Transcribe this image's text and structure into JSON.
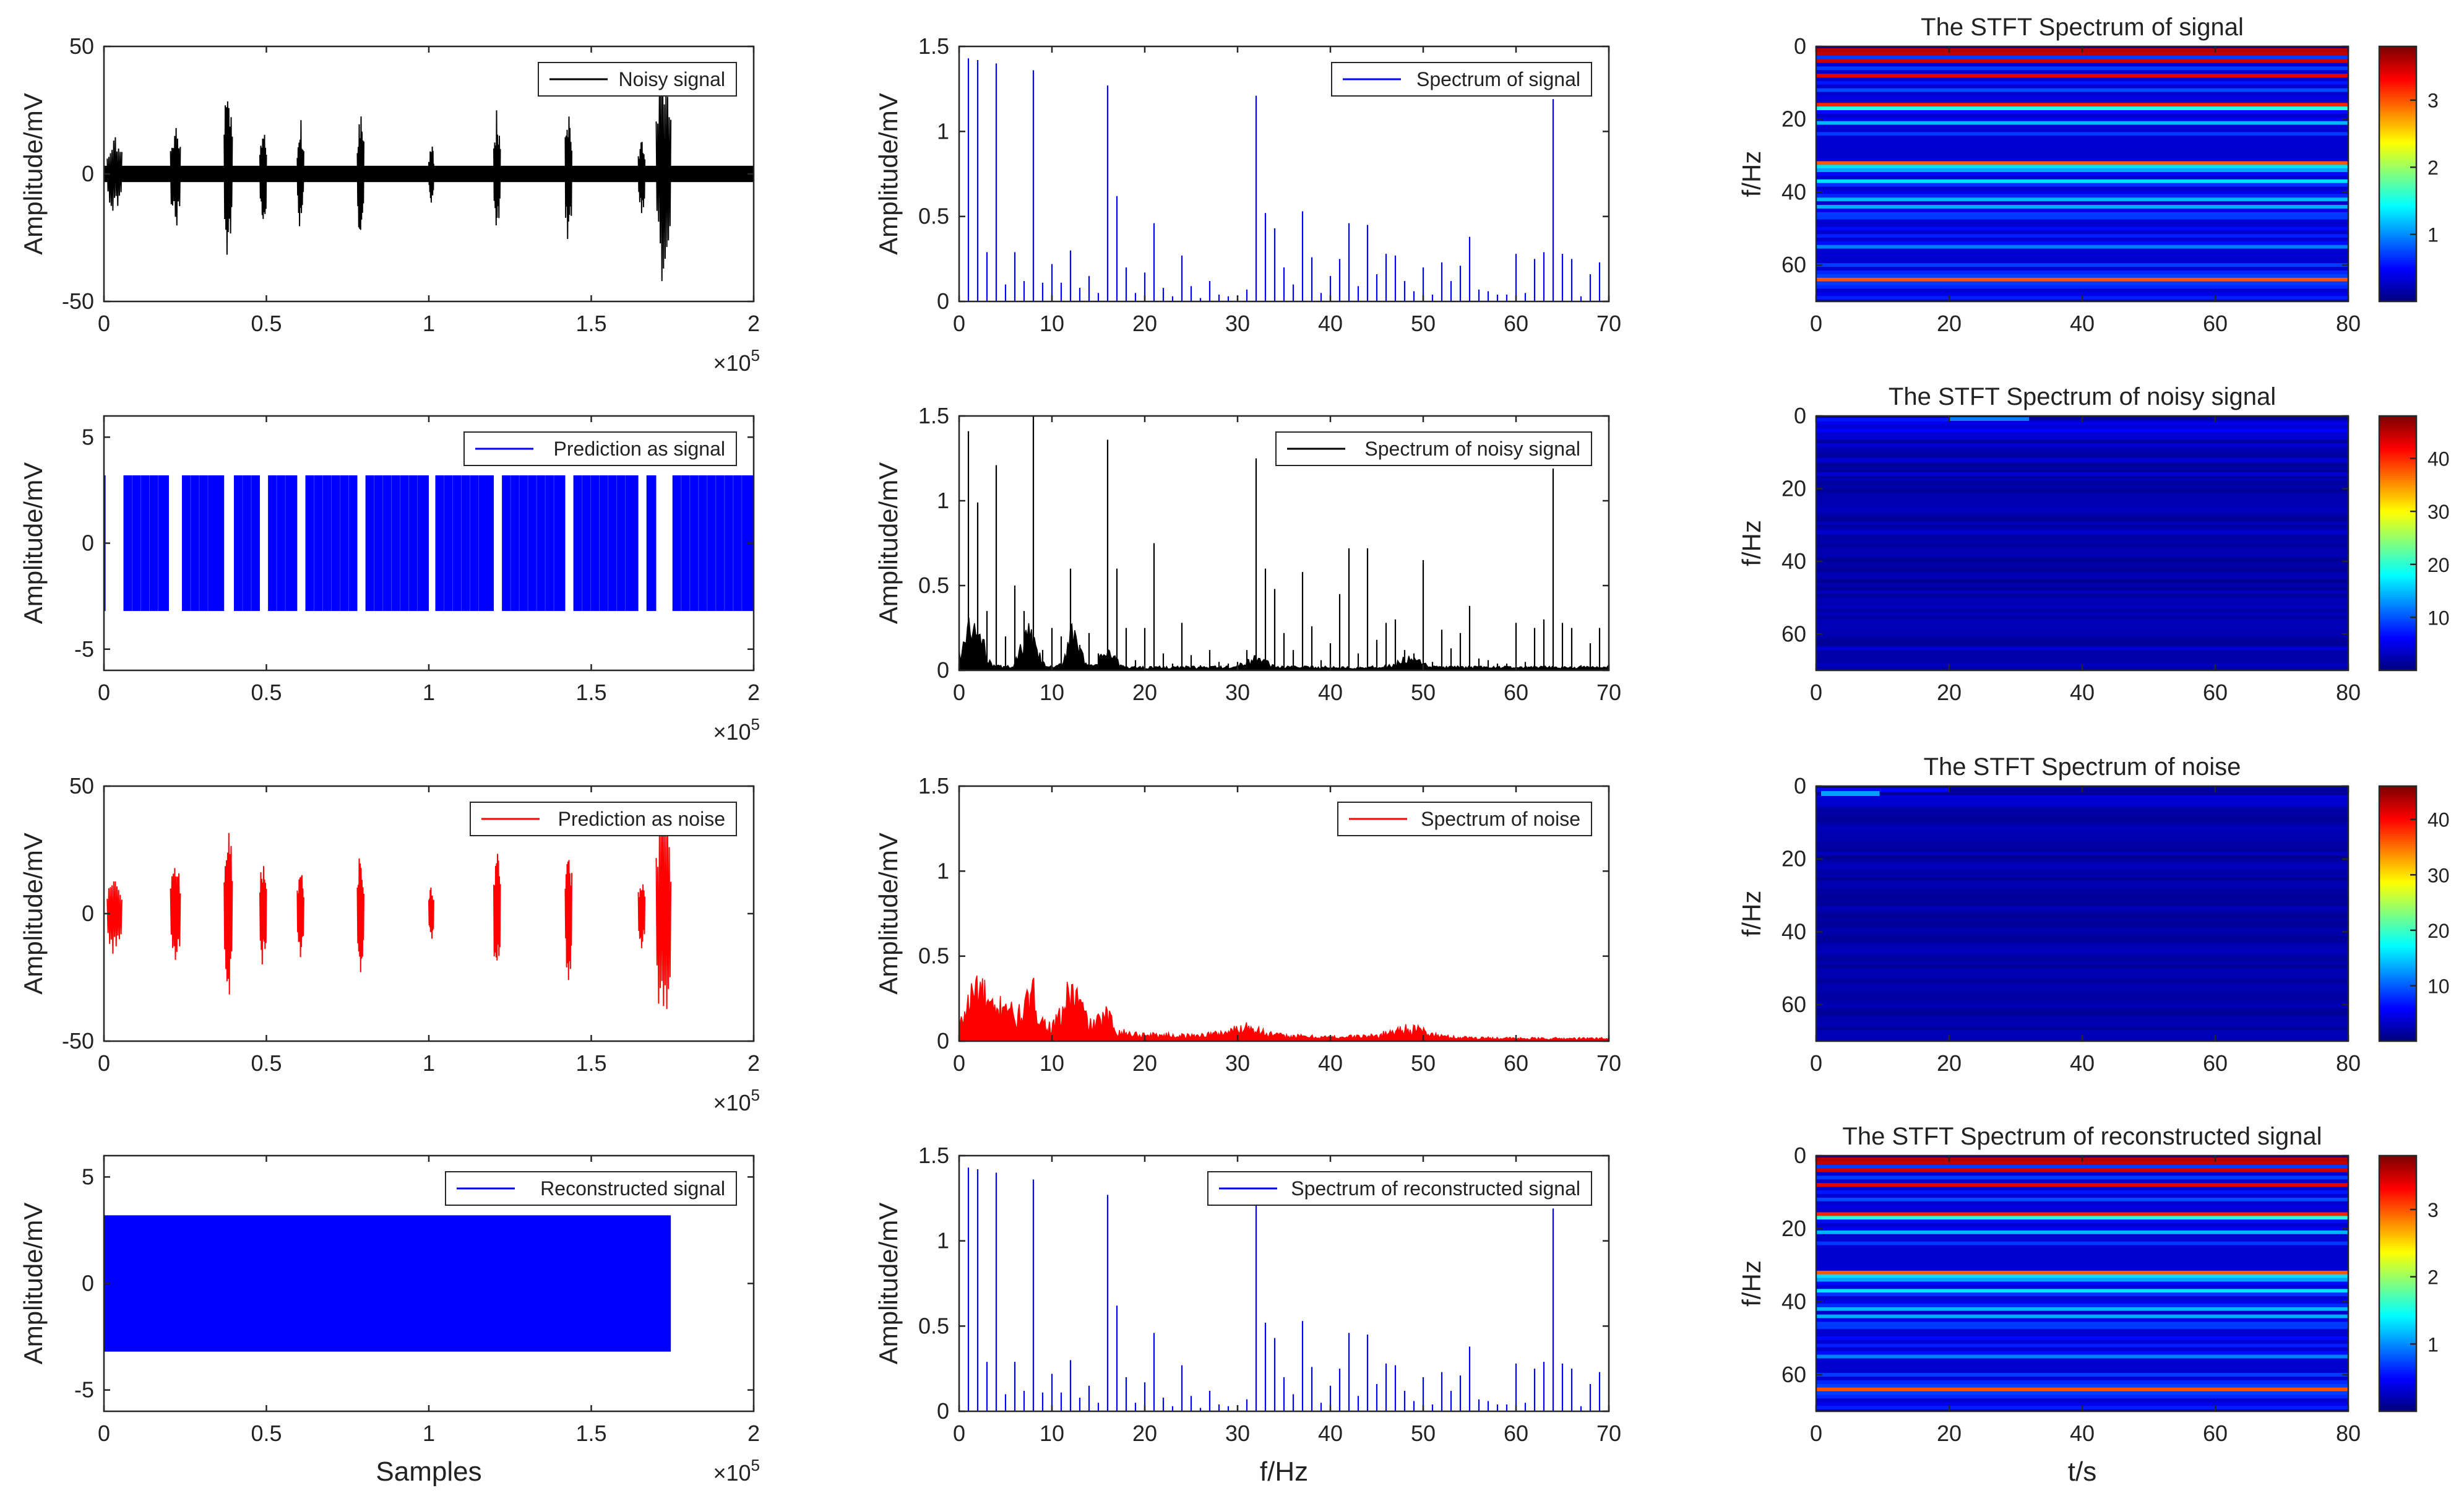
{
  "chart_data": [
    {
      "id": "noisy-signal",
      "type": "line",
      "ylabel": "Amplitude/mV",
      "xlabel": "",
      "x_exponent": "×10",
      "x_exponent_power": "5",
      "xlim": [
        0,
        2
      ],
      "ylim": [
        -50,
        50
      ],
      "xticks": [
        "0",
        "0.5",
        "1",
        "1.5",
        "2"
      ],
      "yticks": [
        "-50",
        "0",
        "50"
      ],
      "legend": "Noisy signal",
      "color": "#000000",
      "baseline_amplitude": 3.2,
      "bursts": [
        {
          "x0": 0.01,
          "x1": 0.055,
          "amp": 18
        },
        {
          "x0": 0.205,
          "x1": 0.235,
          "amp": 23
        },
        {
          "x0": 0.37,
          "x1": 0.395,
          "amp": 38
        },
        {
          "x0": 0.48,
          "x1": 0.5,
          "amp": 23
        },
        {
          "x0": 0.595,
          "x1": 0.615,
          "amp": 23
        },
        {
          "x0": 0.78,
          "x1": 0.8,
          "amp": 27
        },
        {
          "x0": 1.0,
          "x1": 1.015,
          "amp": 13
        },
        {
          "x0": 1.2,
          "x1": 1.22,
          "amp": 27
        },
        {
          "x0": 1.42,
          "x1": 1.44,
          "amp": 30
        },
        {
          "x0": 1.645,
          "x1": 1.665,
          "amp": 17
        },
        {
          "x0": 1.7,
          "x1": 1.745,
          "amp": 50
        }
      ]
    },
    {
      "id": "spectrum-signal",
      "type": "bar",
      "ylabel": "Amplitude/mV",
      "xlabel": "",
      "xlim": [
        0,
        70
      ],
      "ylim": [
        0,
        1.5
      ],
      "xticks": [
        "0",
        "10",
        "20",
        "30",
        "40",
        "50",
        "60",
        "70"
      ],
      "yticks": [
        "0",
        "0.5",
        "1",
        "1.5"
      ],
      "legend": "Spectrum of signal",
      "color": "#0000ff",
      "x": [
        1,
        2,
        3,
        4,
        5,
        6,
        7,
        8,
        9,
        10,
        11,
        12,
        13,
        14,
        15,
        16,
        17,
        18,
        19,
        20,
        21,
        22,
        23,
        24,
        25,
        26,
        27,
        28,
        29,
        30,
        31,
        32,
        33,
        34,
        35,
        36,
        37,
        38,
        39,
        40,
        41,
        42,
        43,
        44,
        45,
        46,
        47,
        48,
        49,
        50,
        51,
        52,
        53,
        54,
        55,
        56,
        57,
        58,
        59,
        60,
        61,
        62,
        63,
        64,
        65,
        66,
        67,
        68,
        69
      ],
      "values": [
        1.43,
        1.42,
        0.29,
        1.4,
        0.1,
        0.29,
        0.12,
        1.36,
        0.11,
        0.22,
        0.11,
        0.3,
        0.08,
        0.15,
        0.05,
        1.27,
        0.62,
        0.2,
        0.05,
        0.17,
        0.46,
        0.08,
        0.03,
        0.27,
        0.09,
        0.02,
        0.12,
        0.04,
        0.03,
        0.03,
        0.07,
        1.21,
        0.52,
        0.43,
        0.2,
        0.1,
        0.53,
        0.26,
        0.05,
        0.15,
        0.25,
        0.46,
        0.09,
        0.45,
        0.16,
        0.28,
        0.27,
        0.12,
        0.06,
        0.2,
        0.04,
        0.23,
        0.12,
        0.21,
        0.38,
        0.07,
        0.06,
        0.04,
        0.04,
        0.28,
        0.05,
        0.25,
        0.29,
        1.19,
        0.28,
        0.25,
        0.03,
        0.16,
        0.23
      ]
    },
    {
      "id": "stft-signal",
      "type": "heatmap",
      "title": "The STFT Spectrum of signal",
      "ylabel": "f/Hz",
      "xlabel": "",
      "xlim": [
        0,
        80
      ],
      "ylim": [
        0,
        70
      ],
      "xticks": [
        "0",
        "20",
        "40",
        "60",
        "80"
      ],
      "yticks": [
        "0",
        "20",
        "40",
        "60"
      ],
      "colorbar_range": [
        0,
        3.8
      ],
      "colorbar_ticks": [
        "1",
        "2",
        "3"
      ],
      "colorbar_values": [
        1,
        2,
        3
      ],
      "rows_hz": [
        1,
        2,
        3,
        4,
        5,
        6,
        7,
        8,
        9,
        10,
        11,
        12,
        13,
        14,
        15,
        16,
        17,
        18,
        19,
        20,
        21,
        22,
        23,
        24,
        25,
        26,
        27,
        28,
        29,
        30,
        31,
        32,
        33,
        34,
        35,
        36,
        37,
        38,
        39,
        40,
        41,
        42,
        43,
        44,
        45,
        46,
        47,
        48,
        49,
        50,
        51,
        52,
        53,
        54,
        55,
        56,
        57,
        58,
        59,
        60,
        61,
        62,
        63,
        64,
        65,
        66,
        67,
        68,
        69
      ],
      "row_values": [
        3.6,
        3.55,
        0.7,
        3.5,
        0.25,
        0.7,
        0.3,
        3.4,
        0.27,
        0.55,
        0.27,
        0.75,
        0.2,
        0.37,
        0.12,
        3.2,
        1.55,
        0.5,
        0.12,
        0.42,
        1.15,
        0.2,
        0.08,
        0.68,
        0.22,
        0.05,
        0.3,
        0.1,
        0.08,
        0.08,
        0.18,
        3.0,
        1.3,
        1.08,
        0.5,
        0.25,
        1.32,
        0.65,
        0.12,
        0.38,
        0.62,
        1.15,
        0.22,
        1.12,
        0.4,
        0.7,
        0.68,
        0.3,
        0.15,
        0.5,
        0.1,
        0.58,
        0.3,
        0.52,
        0.95,
        0.18,
        0.15,
        0.1,
        0.1,
        0.7,
        0.12,
        0.62,
        0.72,
        3.0,
        0.7,
        0.62,
        0.08,
        0.4,
        0.58
      ]
    },
    {
      "id": "prediction-signal",
      "type": "line",
      "ylabel": "Amplitude/mV",
      "xlabel": "",
      "x_exponent": "×10",
      "x_exponent_power": "5",
      "xlim": [
        0,
        2
      ],
      "ylim": [
        -6,
        6
      ],
      "xticks": [
        "0",
        "0.5",
        "1",
        "1.5",
        "2"
      ],
      "yticks": [
        "-5",
        "0",
        "5"
      ],
      "legend": "Prediction as signal",
      "color": "#0000ff",
      "amplitude": 3.2,
      "segments": [
        [
          0.0,
          0.005
        ],
        [
          0.06,
          0.2
        ],
        [
          0.24,
          0.37
        ],
        [
          0.4,
          0.48
        ],
        [
          0.505,
          0.595
        ],
        [
          0.62,
          0.78
        ],
        [
          0.805,
          1.0
        ],
        [
          1.02,
          1.2
        ],
        [
          1.225,
          1.42
        ],
        [
          1.445,
          1.645
        ],
        [
          1.67,
          1.7
        ],
        [
          1.75,
          2.0
        ]
      ]
    },
    {
      "id": "spectrum-noisy",
      "type": "bar",
      "ylabel": "Amplitude/mV",
      "xlabel": "",
      "xlim": [
        0,
        70
      ],
      "ylim": [
        0,
        1.5
      ],
      "xticks": [
        "0",
        "10",
        "20",
        "30",
        "40",
        "50",
        "60",
        "70"
      ],
      "yticks": [
        "0",
        "0.5",
        "1",
        "1.5"
      ],
      "legend": "Spectrum of noisy signal",
      "color": "#000000",
      "x": [
        1,
        2,
        3,
        4,
        5,
        6,
        7,
        8,
        9,
        10,
        11,
        12,
        13,
        14,
        15,
        16,
        17,
        18,
        19,
        20,
        21,
        22,
        23,
        24,
        25,
        26,
        27,
        28,
        29,
        30,
        31,
        32,
        33,
        34,
        35,
        36,
        37,
        38,
        39,
        40,
        41,
        42,
        43,
        44,
        45,
        46,
        47,
        48,
        49,
        50,
        51,
        52,
        53,
        54,
        55,
        56,
        57,
        58,
        59,
        60,
        61,
        62,
        63,
        64,
        65,
        66,
        67,
        68,
        69
      ],
      "values": [
        1.41,
        0.99,
        0.35,
        1.21,
        0.2,
        0.5,
        0.35,
        1.5,
        0.12,
        0.25,
        0.2,
        0.6,
        0.15,
        0.22,
        0.1,
        1.36,
        0.6,
        0.25,
        0.06,
        0.25,
        0.75,
        0.1,
        0.04,
        0.28,
        0.09,
        0.03,
        0.12,
        0.05,
        0.04,
        0.05,
        0.12,
        1.25,
        0.6,
        0.48,
        0.22,
        0.12,
        0.58,
        0.26,
        0.06,
        0.16,
        0.45,
        0.72,
        0.1,
        0.72,
        0.18,
        0.28,
        0.3,
        0.12,
        0.1,
        0.65,
        0.05,
        0.24,
        0.13,
        0.22,
        0.38,
        0.07,
        0.06,
        0.04,
        0.04,
        0.28,
        0.05,
        0.25,
        0.3,
        1.19,
        0.28,
        0.25,
        0.03,
        0.16,
        0.25
      ],
      "noise_floor_color": "#000000"
    },
    {
      "id": "stft-noisy",
      "type": "heatmap",
      "title": "The STFT Spectrum of noisy signal",
      "ylabel": "f/Hz",
      "xlabel": "",
      "xlim": [
        0,
        80
      ],
      "ylim": [
        0,
        70
      ],
      "xticks": [
        "0",
        "20",
        "40",
        "60",
        "80"
      ],
      "yticks": [
        "0",
        "20",
        "40",
        "60"
      ],
      "colorbar_range": [
        0,
        48
      ],
      "colorbar_ticks": [
        "10",
        "20",
        "30",
        "40"
      ],
      "colorbar_values": [
        10,
        20,
        30,
        40
      ],
      "rows_hz": [
        1,
        2,
        3,
        4,
        5,
        6,
        8,
        12,
        16,
        32,
        64
      ],
      "row_values": [
        7,
        5,
        4,
        6,
        3,
        3.5,
        4,
        3,
        3.5,
        3,
        3.5
      ]
    },
    {
      "id": "prediction-noise",
      "type": "line",
      "ylabel": "Amplitude/mV",
      "xlabel": "",
      "x_exponent": "×10",
      "x_exponent_power": "5",
      "xlim": [
        0,
        2
      ],
      "ylim": [
        -50,
        50
      ],
      "xticks": [
        "0",
        "0.5",
        "1",
        "1.5",
        "2"
      ],
      "yticks": [
        "-50",
        "0",
        "50"
      ],
      "legend": "Prediction as noise",
      "color": "#ff0000",
      "bursts": [
        {
          "x0": 0.01,
          "x1": 0.055,
          "amp": 18
        },
        {
          "x0": 0.205,
          "x1": 0.235,
          "amp": 23
        },
        {
          "x0": 0.37,
          "x1": 0.395,
          "amp": 38
        },
        {
          "x0": 0.48,
          "x1": 0.5,
          "amp": 23
        },
        {
          "x0": 0.595,
          "x1": 0.615,
          "amp": 23
        },
        {
          "x0": 0.78,
          "x1": 0.8,
          "amp": 27
        },
        {
          "x0": 1.0,
          "x1": 1.015,
          "amp": 13
        },
        {
          "x0": 1.2,
          "x1": 1.22,
          "amp": 27
        },
        {
          "x0": 1.42,
          "x1": 1.44,
          "amp": 30
        },
        {
          "x0": 1.645,
          "x1": 1.665,
          "amp": 17
        },
        {
          "x0": 1.7,
          "x1": 1.745,
          "amp": 50
        }
      ]
    },
    {
      "id": "spectrum-noise",
      "type": "area",
      "ylabel": "Amplitude/mV",
      "xlabel": "",
      "xlim": [
        0,
        70
      ],
      "ylim": [
        0,
        1.5
      ],
      "xticks": [
        "0",
        "10",
        "20",
        "30",
        "40",
        "50",
        "60",
        "70"
      ],
      "yticks": [
        "0",
        "0.5",
        "1",
        "1.5"
      ],
      "legend": "Spectrum of noise",
      "color": "#ff0000",
      "envelope_x": [
        0,
        1,
        2,
        3,
        4,
        5,
        6,
        7,
        8,
        9,
        10,
        11,
        12,
        13,
        14,
        15,
        16,
        17,
        18,
        20,
        25,
        28,
        30,
        31,
        32,
        33,
        35,
        40,
        45,
        47,
        48,
        49,
        50,
        51,
        53,
        60,
        65,
        70
      ],
      "envelope_y": [
        0.1,
        0.3,
        0.45,
        0.3,
        0.2,
        0.35,
        0.15,
        0.25,
        0.35,
        0.15,
        0.1,
        0.2,
        0.4,
        0.3,
        0.12,
        0.15,
        0.2,
        0.08,
        0.06,
        0.05,
        0.04,
        0.06,
        0.09,
        0.12,
        0.1,
        0.06,
        0.04,
        0.03,
        0.04,
        0.08,
        0.1,
        0.09,
        0.08,
        0.05,
        0.03,
        0.02,
        0.02,
        0.02
      ]
    },
    {
      "id": "stft-noise",
      "type": "heatmap",
      "title": "The STFT Spectrum of noise",
      "ylabel": "f/Hz",
      "xlabel": "",
      "xlim": [
        0,
        80
      ],
      "ylim": [
        0,
        70
      ],
      "xticks": [
        "0",
        "20",
        "40",
        "60",
        "80"
      ],
      "yticks": [
        "0",
        "20",
        "40",
        "60"
      ],
      "colorbar_range": [
        0,
        46
      ],
      "colorbar_ticks": [
        "10",
        "20",
        "30",
        "40"
      ],
      "colorbar_values": [
        10,
        20,
        30,
        40
      ],
      "rows_hz": [
        1,
        2,
        3,
        4,
        5
      ],
      "row_values": [
        6,
        9,
        4,
        3,
        2
      ]
    },
    {
      "id": "reconstructed-signal",
      "type": "line",
      "ylabel": "Amplitude/mV",
      "xlabel": "Samples",
      "x_exponent": "×10",
      "x_exponent_power": "5",
      "xlim": [
        0,
        2
      ],
      "ylim": [
        -6,
        6
      ],
      "xticks": [
        "0",
        "0.5",
        "1",
        "1.5",
        "2"
      ],
      "yticks": [
        "-5",
        "0",
        "5"
      ],
      "legend": "Reconstructed signal",
      "color": "#0000ff",
      "amplitude": 3.2,
      "x_end": 1.745
    },
    {
      "id": "spectrum-reconstructed",
      "type": "bar",
      "ylabel": "Amplitude/mV",
      "xlabel": "f/Hz",
      "xlim": [
        0,
        70
      ],
      "ylim": [
        0,
        1.5
      ],
      "xticks": [
        "0",
        "10",
        "20",
        "30",
        "40",
        "50",
        "60",
        "70"
      ],
      "yticks": [
        "0",
        "0.5",
        "1",
        "1.5"
      ],
      "legend": "Spectrum of reconstructed signal",
      "color": "#0000ff",
      "x": [
        1,
        2,
        3,
        4,
        5,
        6,
        7,
        8,
        9,
        10,
        11,
        12,
        13,
        14,
        15,
        16,
        17,
        18,
        19,
        20,
        21,
        22,
        23,
        24,
        25,
        26,
        27,
        28,
        29,
        30,
        31,
        32,
        33,
        34,
        35,
        36,
        37,
        38,
        39,
        40,
        41,
        42,
        43,
        44,
        45,
        46,
        47,
        48,
        49,
        50,
        51,
        52,
        53,
        54,
        55,
        56,
        57,
        58,
        59,
        60,
        61,
        62,
        63,
        64,
        65,
        66,
        67,
        68,
        69
      ],
      "values": [
        1.43,
        1.42,
        0.29,
        1.4,
        0.1,
        0.29,
        0.12,
        1.36,
        0.11,
        0.22,
        0.11,
        0.3,
        0.08,
        0.15,
        0.05,
        1.27,
        0.62,
        0.2,
        0.05,
        0.17,
        0.46,
        0.08,
        0.03,
        0.27,
        0.09,
        0.02,
        0.12,
        0.04,
        0.03,
        0.03,
        0.07,
        1.21,
        0.52,
        0.43,
        0.2,
        0.1,
        0.53,
        0.26,
        0.05,
        0.15,
        0.25,
        0.46,
        0.09,
        0.45,
        0.16,
        0.28,
        0.27,
        0.12,
        0.06,
        0.2,
        0.04,
        0.23,
        0.12,
        0.21,
        0.38,
        0.07,
        0.06,
        0.04,
        0.04,
        0.28,
        0.05,
        0.25,
        0.29,
        1.19,
        0.28,
        0.25,
        0.03,
        0.16,
        0.23
      ]
    },
    {
      "id": "stft-reconstructed",
      "type": "heatmap",
      "title": "The STFT Spectrum of reconstructed signal",
      "ylabel": "f/Hz",
      "xlabel": "t/s",
      "xlim": [
        0,
        80
      ],
      "ylim": [
        0,
        70
      ],
      "xticks": [
        "0",
        "20",
        "40",
        "60",
        "80"
      ],
      "yticks": [
        "0",
        "20",
        "40",
        "60"
      ],
      "colorbar_range": [
        0,
        3.8
      ],
      "colorbar_ticks": [
        "1",
        "2",
        "3"
      ],
      "colorbar_values": [
        1,
        2,
        3
      ],
      "rows_hz": [
        1,
        2,
        3,
        4,
        5,
        6,
        7,
        8,
        9,
        10,
        11,
        12,
        13,
        14,
        15,
        16,
        17,
        18,
        19,
        20,
        21,
        22,
        23,
        24,
        25,
        26,
        27,
        28,
        29,
        30,
        31,
        32,
        33,
        34,
        35,
        36,
        37,
        38,
        39,
        40,
        41,
        42,
        43,
        44,
        45,
        46,
        47,
        48,
        49,
        50,
        51,
        52,
        53,
        54,
        55,
        56,
        57,
        58,
        59,
        60,
        61,
        62,
        63,
        64,
        65,
        66,
        67,
        68,
        69
      ],
      "row_values": [
        3.6,
        3.55,
        0.7,
        3.5,
        0.25,
        0.7,
        0.3,
        3.4,
        0.27,
        0.55,
        0.27,
        0.75,
        0.2,
        0.37,
        0.12,
        3.2,
        1.55,
        0.5,
        0.12,
        0.42,
        1.15,
        0.2,
        0.08,
        0.68,
        0.22,
        0.05,
        0.3,
        0.1,
        0.08,
        0.08,
        0.18,
        3.0,
        1.3,
        1.08,
        0.5,
        0.25,
        1.32,
        0.65,
        0.12,
        0.38,
        0.62,
        1.15,
        0.22,
        1.12,
        0.4,
        0.7,
        0.68,
        0.3,
        0.15,
        0.5,
        0.1,
        0.58,
        0.3,
        0.52,
        0.95,
        0.18,
        0.15,
        0.1,
        0.1,
        0.7,
        0.12,
        0.62,
        0.72,
        3.0,
        0.7,
        0.62,
        0.08,
        0.4,
        0.58
      ]
    }
  ]
}
